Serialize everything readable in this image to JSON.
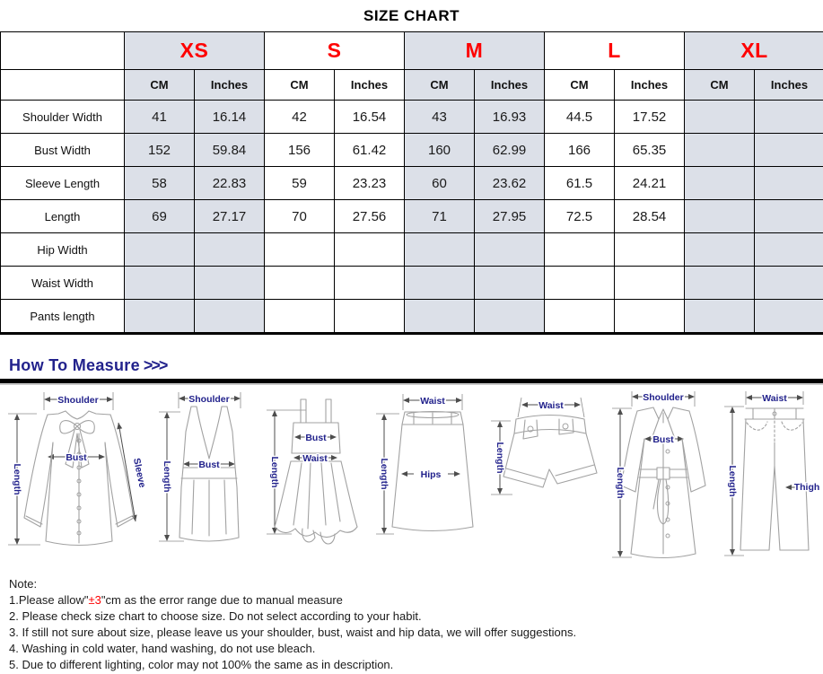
{
  "page": {
    "title": "SIZE CHART"
  },
  "table": {
    "sizes": [
      "XS",
      "S",
      "M",
      "L",
      "XL"
    ],
    "units": {
      "cm": "CM",
      "inches": "Inches"
    },
    "rows": [
      {
        "label": "Shoulder Width",
        "values": [
          "41",
          "16.14",
          "42",
          "16.54",
          "43",
          "16.93",
          "44.5",
          "17.52",
          "",
          ""
        ]
      },
      {
        "label": "Bust Width",
        "values": [
          "152",
          "59.84",
          "156",
          "61.42",
          "160",
          "62.99",
          "166",
          "65.35",
          "",
          ""
        ]
      },
      {
        "label": "Sleeve Length",
        "values": [
          "58",
          "22.83",
          "59",
          "23.23",
          "60",
          "23.62",
          "61.5",
          "24.21",
          "",
          ""
        ]
      },
      {
        "label": "Length",
        "values": [
          "69",
          "27.17",
          "70",
          "27.56",
          "71",
          "27.95",
          "72.5",
          "28.54",
          "",
          ""
        ]
      },
      {
        "label": "Hip Width",
        "values": [
          "",
          "",
          "",
          "",
          "",
          "",
          "",
          "",
          "",
          ""
        ]
      },
      {
        "label": "Waist Width",
        "values": [
          "",
          "",
          "",
          "",
          "",
          "",
          "",
          "",
          "",
          ""
        ]
      },
      {
        "label": "Pants length",
        "values": [
          "",
          "",
          "",
          "",
          "",
          "",
          "",
          "",
          "",
          ""
        ]
      }
    ]
  },
  "measure": {
    "heading": "How To Measure",
    "chevrons": ">>>"
  },
  "figures": [
    {
      "name": "blouse",
      "labels": {
        "shoulder": "Shoulder",
        "bust": "Bust",
        "sleeve": "Sleeve",
        "length": "Length"
      }
    },
    {
      "name": "tank-top",
      "labels": {
        "shoulder": "Shoulder",
        "bust": "Bust",
        "length": "Length"
      }
    },
    {
      "name": "dress",
      "labels": {
        "bust": "Bust",
        "waist": "Waist",
        "length": "Length"
      }
    },
    {
      "name": "skirt",
      "labels": {
        "waist": "Waist",
        "hips": "Hips",
        "length": "Length"
      }
    },
    {
      "name": "shorts",
      "labels": {
        "waist": "Waist",
        "length": "Length"
      }
    },
    {
      "name": "coat",
      "labels": {
        "shoulder": "Shoulder",
        "bust": "Bust",
        "length": "Length"
      }
    },
    {
      "name": "pants",
      "labels": {
        "waist": "Waist",
        "thigh": "Thigh",
        "length": "Length"
      }
    }
  ],
  "notes": {
    "title": "Note:",
    "lines": [
      {
        "parts": [
          {
            "t": "1.Please allow\""
          },
          {
            "t": "±3",
            "red": true
          },
          {
            "t": "\"cm as the error range due to manual measure"
          }
        ]
      },
      {
        "parts": [
          {
            "t": "2. Please check size chart to choose size. Do not select according to your habit."
          }
        ]
      },
      {
        "parts": [
          {
            "t": "3. If still not sure about size, please leave us your shoulder, bust, waist and hip data, we will offer suggestions."
          }
        ]
      },
      {
        "parts": [
          {
            "t": "4. Washing in cold water, hand washing, do not use bleach."
          }
        ]
      },
      {
        "parts": [
          {
            "t": "5. Due to different lighting, color may not 100% the same as in description."
          }
        ]
      }
    ]
  },
  "colors": {
    "size_red": "#fe0000",
    "cell_shade": "#dce0e8",
    "navy": "#22228c",
    "text": "#1a1a1a"
  }
}
